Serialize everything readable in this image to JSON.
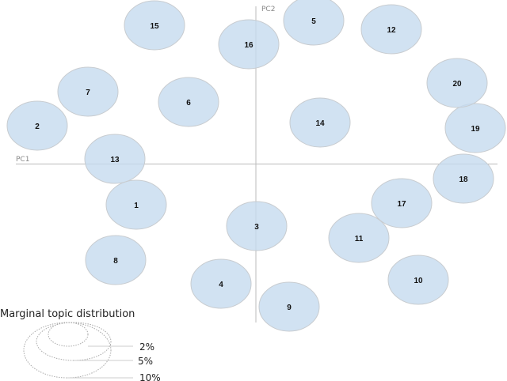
{
  "chart_data": {
    "type": "scatter",
    "title": "",
    "xlabel": "PC1",
    "ylabel": "PC2",
    "grid": false,
    "bubble_color": "#c6dbef",
    "topics": [
      {
        "id": "1",
        "pc1": -1.51,
        "pc2": -0.52
      },
      {
        "id": "2",
        "pc1": -2.76,
        "pc2": 0.48
      },
      {
        "id": "3",
        "pc1": 0.01,
        "pc2": -0.79
      },
      {
        "id": "4",
        "pc1": -0.44,
        "pc2": -1.52
      },
      {
        "id": "5",
        "pc1": 0.73,
        "pc2": 1.81
      },
      {
        "id": "6",
        "pc1": -0.85,
        "pc2": 0.78
      },
      {
        "id": "7",
        "pc1": -2.12,
        "pc2": 0.91
      },
      {
        "id": "8",
        "pc1": -1.77,
        "pc2": -1.22
      },
      {
        "id": "9",
        "pc1": 0.42,
        "pc2": -1.81
      },
      {
        "id": "10",
        "pc1": 2.05,
        "pc2": -1.47
      },
      {
        "id": "11",
        "pc1": 1.3,
        "pc2": -0.94
      },
      {
        "id": "12",
        "pc1": 1.71,
        "pc2": 1.7
      },
      {
        "id": "13",
        "pc1": -1.78,
        "pc2": 0.06
      },
      {
        "id": "14",
        "pc1": 0.81,
        "pc2": 0.52
      },
      {
        "id": "15",
        "pc1": -1.28,
        "pc2": 1.75
      },
      {
        "id": "16",
        "pc1": -0.09,
        "pc2": 1.51
      },
      {
        "id": "17",
        "pc1": 1.84,
        "pc2": -0.5
      },
      {
        "id": "18",
        "pc1": 2.62,
        "pc2": -0.19
      },
      {
        "id": "19",
        "pc1": 2.77,
        "pc2": 0.45
      },
      {
        "id": "20",
        "pc1": 2.54,
        "pc2": 1.02
      }
    ],
    "legend": {
      "title": "Marginal topic distribution",
      "entries": [
        "2%",
        "5%",
        "10%"
      ]
    }
  }
}
